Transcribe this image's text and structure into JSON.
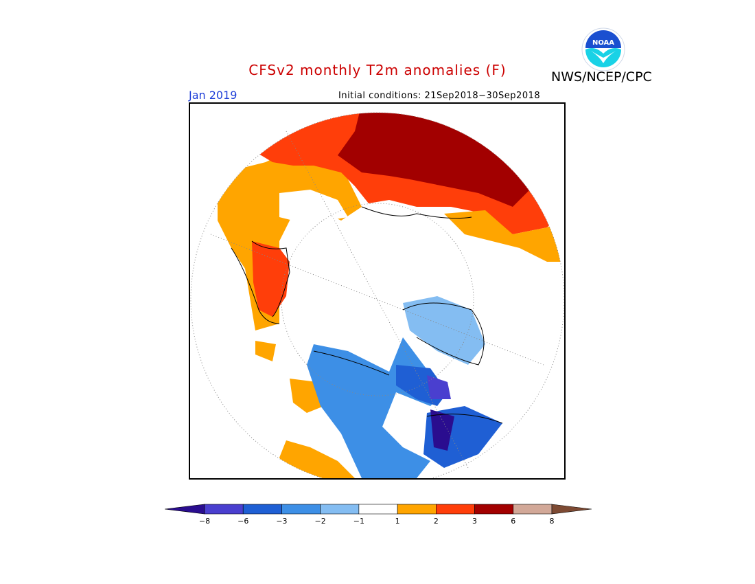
{
  "header": {
    "title": "CFSv2 monthly T2m anomalies (F)",
    "agency": "NWS/NCEP/CPC",
    "month": "Jan 2019",
    "initial_conditions": "Initial conditions: 21Sep2018−30Sep2018"
  },
  "logo": {
    "icon": "noaa-logo",
    "text": "NOAA",
    "colors": {
      "outer": "#ffffff",
      "top": "#1a4fd0",
      "bottom": "#19d2e6"
    }
  },
  "map": {
    "projection": "north polar stereographic",
    "boundary_color": "#000000",
    "circle_grid": "dotted"
  },
  "colorbar": {
    "bins": [
      {
        "color": "#2a0d8f"
      },
      {
        "color": "#4a3fcf"
      },
      {
        "color": "#1f5fd4"
      },
      {
        "color": "#3d8fe6"
      },
      {
        "color": "#84bdf2"
      },
      {
        "color": "#ffffff"
      },
      {
        "color": "#ffa500"
      },
      {
        "color": "#ff3e0a"
      },
      {
        "color": "#a20000"
      },
      {
        "color": "#d2a898"
      },
      {
        "color": "#7d4a33"
      }
    ],
    "tick_labels": [
      "−8",
      "−6",
      "−3",
      "−2",
      "−1",
      "1",
      "2",
      "3",
      "6",
      "8"
    ]
  }
}
